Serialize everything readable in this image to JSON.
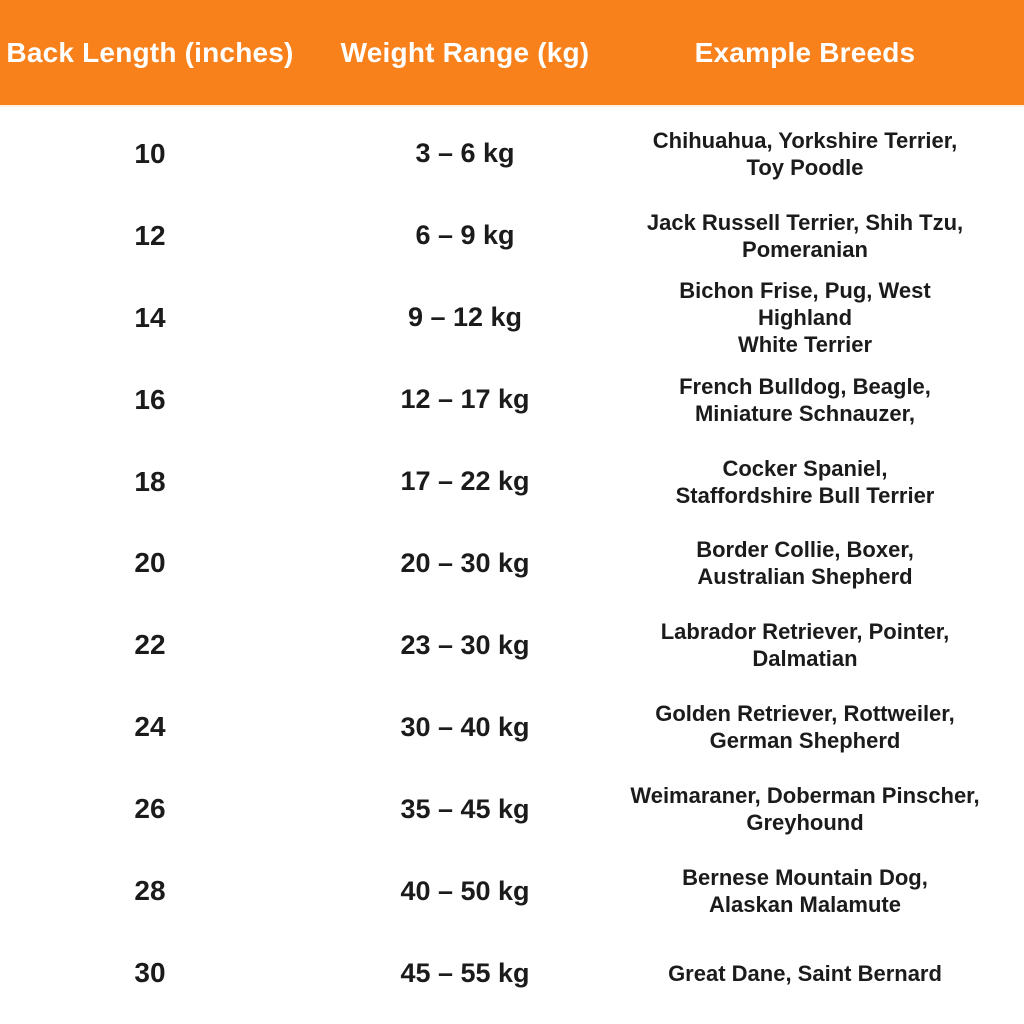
{
  "accent_color": "#f8811c",
  "text_color": "#1b1b1b",
  "header": {
    "col_back_length": "Back Length (inches)",
    "col_weight_range": "Weight Range (kg)",
    "col_example_breeds": "Example Breeds"
  },
  "rows": [
    {
      "back_length": "10",
      "weight_range": "3 – 6 kg",
      "breeds": "Chihuahua,  Yorkshire Terrier,\nToy Poodle"
    },
    {
      "back_length": "12",
      "weight_range": "6 – 9 kg",
      "breeds": "Jack Russell Terrier, Shih Tzu,\nPomeranian"
    },
    {
      "back_length": "14",
      "weight_range": "9 – 12 kg",
      "breeds": "Bichon Frise, Pug, West Highland\nWhite Terrier"
    },
    {
      "back_length": "16",
      "weight_range": "12 – 17 kg",
      "breeds": "French Bulldog, Beagle,\nMiniature Schnauzer,"
    },
    {
      "back_length": "18",
      "weight_range": "17 – 22 kg",
      "breeds": "Cocker Spaniel,\nStaffordshire Bull Terrier"
    },
    {
      "back_length": "20",
      "weight_range": "20 – 30 kg",
      "breeds": "Border Collie, Boxer,\nAustralian Shepherd"
    },
    {
      "back_length": "22",
      "weight_range": "23 – 30 kg",
      "breeds": "Labrador Retriever, Pointer,\nDalmatian"
    },
    {
      "back_length": "24",
      "weight_range": "30 – 40 kg",
      "breeds": "Golden Retriever, Rottweiler,\nGerman Shepherd"
    },
    {
      "back_length": "26",
      "weight_range": "35 – 45 kg",
      "breeds": "Weimaraner, Doberman Pinscher,\nGreyhound"
    },
    {
      "back_length": "28",
      "weight_range": "40 – 50 kg",
      "breeds": "Bernese Mountain Dog,\nAlaskan Malamute"
    },
    {
      "back_length": "30",
      "weight_range": "45 – 55 kg",
      "breeds": "Great Dane, Saint Bernard"
    }
  ],
  "chart_data": {
    "type": "table",
    "title": "Dog size chart by back length",
    "columns": [
      "Back Length (inches)",
      "Weight Range (kg)",
      "Example Breeds"
    ],
    "rows": [
      [
        "10",
        "3 – 6 kg",
        "Chihuahua, Yorkshire Terrier, Toy Poodle"
      ],
      [
        "12",
        "6 – 9 kg",
        "Jack Russell Terrier, Shih Tzu, Pomeranian"
      ],
      [
        "14",
        "9 – 12 kg",
        "Bichon Frise, Pug, West Highland White Terrier"
      ],
      [
        "16",
        "12 – 17 kg",
        "French Bulldog, Beagle, Miniature Schnauzer,"
      ],
      [
        "18",
        "17 – 22 kg",
        "Cocker Spaniel, Staffordshire Bull Terrier"
      ],
      [
        "20",
        "20 – 30 kg",
        "Border Collie, Boxer, Australian Shepherd"
      ],
      [
        "22",
        "23 – 30 kg",
        "Labrador Retriever, Pointer, Dalmatian"
      ],
      [
        "24",
        "30 – 40 kg",
        "Golden Retriever, Rottweiler, German Shepherd"
      ],
      [
        "26",
        "35 – 45 kg",
        "Weimaraner, Doberman Pinscher, Greyhound"
      ],
      [
        "28",
        "40 – 50 kg",
        "Bernese Mountain Dog, Alaskan Malamute"
      ],
      [
        "30",
        "45 – 55 kg",
        "Great Dane, Saint Bernard"
      ]
    ],
    "back_length_inches": [
      10,
      12,
      14,
      16,
      18,
      20,
      22,
      24,
      26,
      28,
      30
    ],
    "weight_min_kg": [
      3,
      6,
      9,
      12,
      17,
      20,
      23,
      30,
      35,
      40,
      45
    ],
    "weight_max_kg": [
      6,
      9,
      12,
      17,
      22,
      30,
      30,
      40,
      45,
      50,
      55
    ]
  }
}
